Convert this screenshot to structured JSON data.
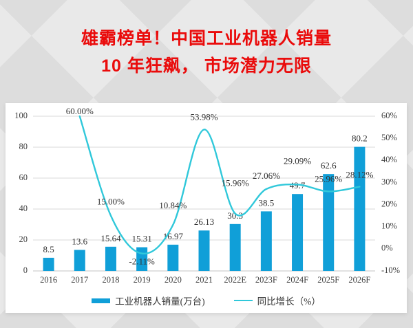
{
  "title": {
    "line1": "雄霸榜单！中国工业机器人销量",
    "line2": "10 年狂飙， 市场潜力无限"
  },
  "chart_data": {
    "type": "bar+line-combo",
    "title": "",
    "categories": [
      "2016",
      "2017",
      "2018",
      "2019",
      "2020",
      "2021",
      "2022E",
      "2023F",
      "2024F",
      "2025F",
      "2026F"
    ],
    "series": [
      {
        "name": "工业机器人销量(万台)",
        "type": "bar",
        "axis": "left",
        "color": "#109fd8",
        "values": [
          8.5,
          13.6,
          15.64,
          15.31,
          16.97,
          26.13,
          30.3,
          38.5,
          49.7,
          62.6,
          80.2
        ],
        "labels": [
          "8.5",
          "13.6",
          "15.64",
          "15.31",
          "16.97",
          "26.13",
          "30.3",
          "38.5",
          "49.7",
          "62.6",
          "80.2"
        ]
      },
      {
        "name": "同比增长（%）",
        "type": "line",
        "axis": "right",
        "color": "#30c8da",
        "values": [
          null,
          60.0,
          15.0,
          -2.11,
          10.84,
          53.98,
          15.96,
          27.06,
          29.09,
          25.96,
          28.12
        ],
        "labels": [
          "",
          "60.00%",
          "15.00%",
          "-2.11%",
          "10.84%",
          "53.98%",
          "15.96%",
          "27.06%",
          "29.09%",
          "25.96%",
          "28.12%"
        ]
      }
    ],
    "left_axis": {
      "min": 0,
      "max": 100,
      "ticks": [
        "0",
        "20",
        "40",
        "60",
        "80",
        "100"
      ]
    },
    "right_axis": {
      "min": -10,
      "max": 60,
      "ticks": [
        "-10%",
        "0%",
        "10%",
        "20%",
        "30%",
        "40%",
        "50%",
        "60%"
      ]
    },
    "grid": true,
    "legend_position": "bottom"
  },
  "legend": {
    "items": [
      {
        "label": "工业机器人销量(万台)",
        "swatch": "bar",
        "color": "#109fd8"
      },
      {
        "label": "同比增长（%）",
        "swatch": "line",
        "color": "#30c8da"
      }
    ]
  },
  "colors": {
    "title_red": "#ea0b0b",
    "bar_blue": "#109fd8",
    "line_cyan": "#30c8da",
    "gridline": "#dadada",
    "axis_line": "#c3c3c3",
    "axis_text": "#3f3f3f",
    "panel_bg": "#ffffff",
    "page_bg": "#e9e9e9"
  }
}
